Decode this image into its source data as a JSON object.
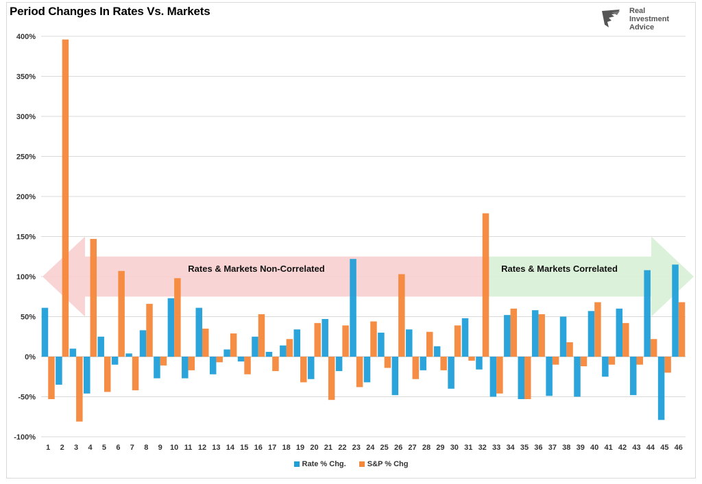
{
  "title": "Period Changes In Rates Vs. Markets",
  "logo": {
    "line1": "Real",
    "line2": "Investment",
    "line3": "Advice",
    "icon": "eagle-head-icon"
  },
  "colors": {
    "rate": "#1f9fd8",
    "sp": "#f4883a",
    "noncorr": "#f8cfcf",
    "corr": "#d8efd5",
    "grid": "#d9d9d9"
  },
  "annotations": {
    "noncorrelated": "Rates & Markets Non-Correlated",
    "correlated": "Rates & Markets Correlated"
  },
  "chart_data": {
    "type": "bar",
    "title": "Period Changes In Rates Vs. Markets",
    "categories": [
      "1",
      "2",
      "3",
      "4",
      "5",
      "6",
      "7",
      "8",
      "9",
      "10",
      "11",
      "12",
      "13",
      "14",
      "15",
      "16",
      "17",
      "18",
      "19",
      "20",
      "21",
      "22",
      "23",
      "24",
      "25",
      "26",
      "27",
      "28",
      "29",
      "30",
      "31",
      "32",
      "33",
      "34",
      "35",
      "36",
      "37",
      "38",
      "39",
      "40",
      "41",
      "42",
      "43",
      "44",
      "45",
      "46"
    ],
    "series": [
      {
        "name": "Rate % Chg.",
        "values": [
          61,
          -35,
          10,
          -46,
          25,
          -10,
          4,
          33,
          -27,
          73,
          -27,
          61,
          -22,
          9,
          -6,
          25,
          6,
          14,
          34,
          -28,
          47,
          -18,
          122,
          -32,
          30,
          -48,
          34,
          -17,
          13,
          -40,
          48,
          -16,
          -50,
          52,
          -53,
          58,
          -49,
          50,
          -50,
          57,
          -25,
          60,
          -48,
          108,
          -79,
          115
        ]
      },
      {
        "name": "S&P % Chg",
        "values": [
          -53,
          396,
          -81,
          147,
          -44,
          107,
          -42,
          66,
          -11,
          98,
          -17,
          35,
          -7,
          29,
          -22,
          53,
          -18,
          22,
          -32,
          42,
          -54,
          39,
          -38,
          44,
          -14,
          103,
          -28,
          31,
          -17,
          39,
          -5,
          179,
          -46,
          60,
          -53,
          53,
          -10,
          18,
          -12,
          68,
          -10,
          42,
          -10,
          22,
          -20,
          68
        ]
      }
    ],
    "yticks": [
      "400%",
      "350%",
      "300%",
      "250%",
      "200%",
      "150%",
      "100%",
      "50%",
      "0%",
      "-50%",
      "-100%"
    ],
    "ylim": [
      -100,
      400
    ],
    "legend_position": "bottom-center",
    "grid": true
  }
}
